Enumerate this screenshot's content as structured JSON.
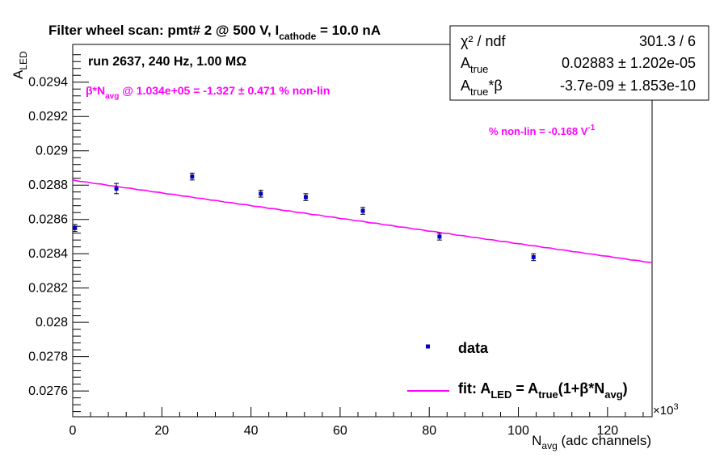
{
  "title": {
    "main": "Filter wheel scan: pmt#   2 @   500 V, I",
    "sub": "cathode",
    "tail": " = 10.0 nA"
  },
  "run_info": "run 2637, 240 Hz, 1.00 MΩ",
  "beta_annotation": {
    "prefix": "β*N",
    "sub": "avg",
    "rest": " @ 1.034e+05 = -1.327 ± 0.471 % non-lin",
    "color": "#ff00ff"
  },
  "nonlin_annotation": {
    "text": "% non-lin = -0.168 V",
    "sup": "-1",
    "color": "#ff00ff"
  },
  "stats_box": {
    "rows": [
      {
        "label": "χ² / ndf",
        "value": "301.3 / 6"
      },
      {
        "label_main": "A",
        "label_sub": "true",
        "value": "0.02883 ± 1.202e-05"
      },
      {
        "label_main": "A",
        "label_sub": "true",
        "label_tail": "*β",
        "value": "-3.7e-09 ± 1.853e-10"
      }
    ]
  },
  "legend": {
    "data_label": "data",
    "fit_label": {
      "p1": "fit: A",
      "s1": "LED",
      "p2": " = A",
      "s2": "true",
      "p3": "(1+β*N",
      "s3": "avg",
      "p4": ")"
    }
  },
  "axis_labels": {
    "x_main": "N",
    "x_sub": "avg",
    "x_rest": " (adc channels)",
    "x_multiplier": "×10",
    "x_multiplier_exp": "3",
    "y_main": "A",
    "y_sub": "LED"
  },
  "chart_data": {
    "type": "scatter",
    "title": "Filter wheel scan: pmt#   2 @   500 V, I_cathode = 10.0 nA",
    "xlabel": "N_avg (adc channels)",
    "ylabel": "A_LED",
    "x_multiplier": 1000,
    "xlim": [
      0,
      130
    ],
    "ylim": [
      0.02745,
      0.02962
    ],
    "x_ticks": [
      0,
      20,
      40,
      60,
      80,
      100,
      120
    ],
    "x_tick_labels": [
      "0",
      "20",
      "40",
      "60",
      "80",
      "100",
      "120"
    ],
    "y_ticks": [
      0.0276,
      0.0278,
      0.028,
      0.0282,
      0.0284,
      0.0286,
      0.0288,
      0.029,
      0.0292,
      0.0294
    ],
    "y_tick_labels": [
      "0.0276",
      "0.0278",
      "0.028",
      "0.0282",
      "0.0284",
      "0.0286",
      "0.0288",
      "0.029",
      "0.0292",
      "0.0294"
    ],
    "series": [
      {
        "name": "data",
        "color": "#0000cc",
        "points": [
          {
            "x": 0.5,
            "y": 0.02855,
            "err": 2e-05
          },
          {
            "x": 9.8,
            "y": 0.02878,
            "err": 3e-05
          },
          {
            "x": 26.8,
            "y": 0.02885,
            "err": 2e-05
          },
          {
            "x": 42.2,
            "y": 0.02875,
            "err": 2e-05
          },
          {
            "x": 52.3,
            "y": 0.02873,
            "err": 2e-05
          },
          {
            "x": 65.1,
            "y": 0.02865,
            "err": 2e-05
          },
          {
            "x": 82.3,
            "y": 0.0285,
            "err": 2e-05
          },
          {
            "x": 103.4,
            "y": 0.02838,
            "err": 2e-05
          }
        ]
      }
    ],
    "fit": {
      "name": "fit",
      "color": "#ff00ff",
      "a_true": 0.02883,
      "beta_a_true_per_adc": -3.7e-09,
      "x_range": [
        0,
        130
      ]
    },
    "grid": false,
    "legend_position": "bottom-right"
  }
}
